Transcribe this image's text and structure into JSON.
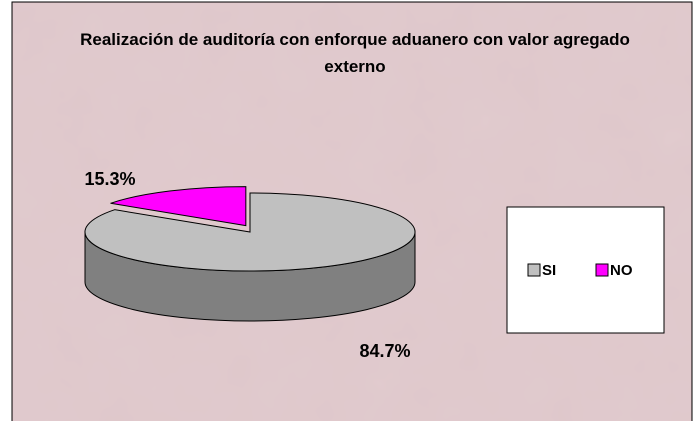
{
  "chart_data": {
    "type": "pie3d",
    "title": "Realización de auditoría con enforque aduanero con valor agregado externo",
    "categories": [
      "SI",
      "NO"
    ],
    "values": [
      84.7,
      15.3
    ],
    "value_labels": [
      "84.7%",
      "15.3%"
    ],
    "colors": [
      "#c0c0c0",
      "#ff00ff"
    ],
    "legend": "right"
  }
}
